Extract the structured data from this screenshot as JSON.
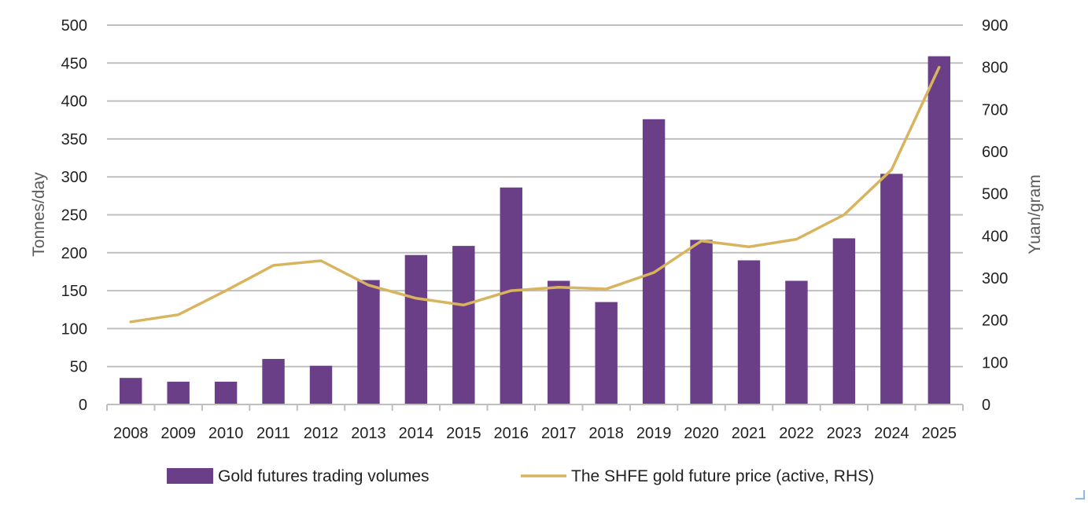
{
  "chart_data": {
    "type": "bar",
    "categories": [
      "2008",
      "2009",
      "2010",
      "2011",
      "2012",
      "2013",
      "2014",
      "2015",
      "2016",
      "2017",
      "2018",
      "2019",
      "2020",
      "2021",
      "2022",
      "2023",
      "2024",
      "2025"
    ],
    "series": [
      {
        "name": "Gold futures trading volumes",
        "type": "bar",
        "axis": "left",
        "color": "#6b3f87",
        "values": [
          35,
          30,
          30,
          60,
          51,
          164,
          197,
          209,
          286,
          163,
          135,
          376,
          217,
          190,
          163,
          219,
          304,
          459
        ]
      },
      {
        "name": "The SHFE gold future price (active, RHS)",
        "type": "line",
        "axis": "right",
        "color": "#d9b45f",
        "values": [
          196,
          213,
          270,
          330,
          341,
          283,
          252,
          236,
          270,
          278,
          274,
          313,
          388,
          374,
          392,
          450,
          557,
          800
        ]
      }
    ],
    "y_left": {
      "label": "Tonnes/day",
      "range": [
        0,
        500
      ],
      "ticks": [
        0,
        50,
        100,
        150,
        200,
        250,
        300,
        350,
        400,
        450,
        500
      ]
    },
    "y_right": {
      "label": "Yuan/gram",
      "range": [
        0,
        900
      ],
      "ticks": [
        0,
        100,
        200,
        300,
        400,
        500,
        600,
        700,
        800,
        900
      ]
    },
    "grid": true,
    "legend_position": "bottom"
  }
}
